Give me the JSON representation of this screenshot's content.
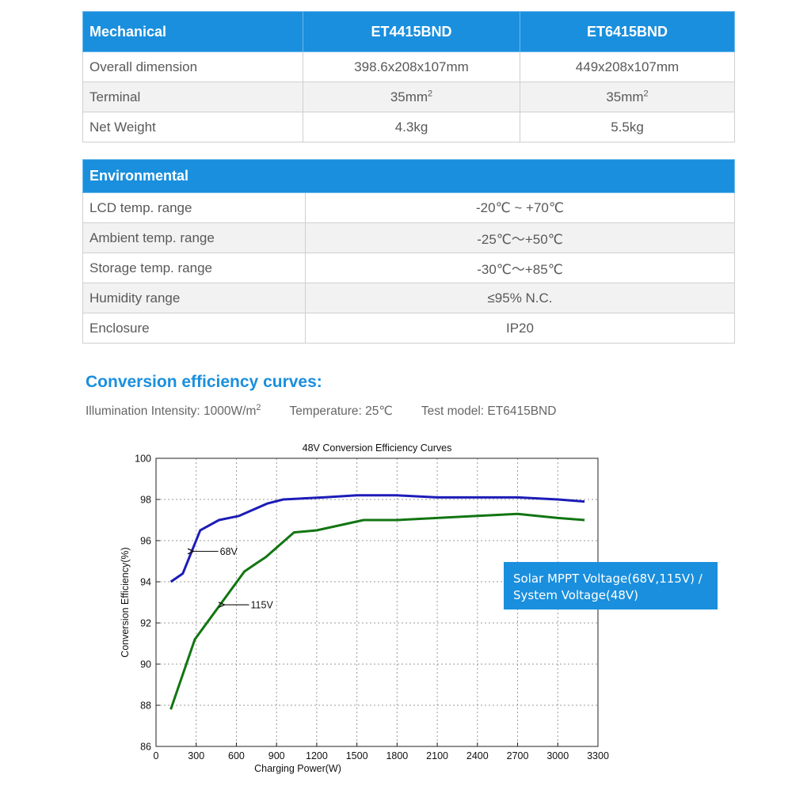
{
  "mechanical": {
    "header": [
      "Mechanical",
      "ET4415BND",
      "ET6415BND"
    ],
    "rows": [
      {
        "label": "Overall dimension",
        "a": "398.6x208x107mm",
        "b": "449x208x107mm"
      },
      {
        "label": "Terminal",
        "a": "35mm",
        "a_sup": "2",
        "b": "35mm",
        "b_sup": "2"
      },
      {
        "label": "Net Weight",
        "a": "4.3kg",
        "b": "5.5kg"
      }
    ]
  },
  "environmental": {
    "header": "Environmental",
    "rows": [
      {
        "label": "LCD temp. range",
        "value": "-20℃ ~ +70℃"
      },
      {
        "label": "Ambient temp. range",
        "value": "-25℃～+50℃"
      },
      {
        "label": "Storage temp. range",
        "value": "-30℃～+85℃"
      },
      {
        "label": "Humidity range",
        "value": "≤95% N.C."
      },
      {
        "label": "Enclosure",
        "value": "IP20"
      }
    ]
  },
  "curves": {
    "title": "Conversion efficiency curves:",
    "illumination": "Illumination Intensity: 1000W/m",
    "illumination_sup": "2",
    "temperature": "Temperature: 25℃",
    "test_model": "Test model: ET6415BND"
  },
  "legend_box": {
    "line1": "Solar MPPT Voltage(68V,115V) /",
    "line2": "System Voltage(48V)",
    "color": "#1a8fdd"
  },
  "chart_data": {
    "type": "line",
    "title": "48V Conversion Efficiency Curves",
    "xlabel": "Charging Power(W)",
    "ylabel": "Conversion Efficiency(%)",
    "xlim": [
      0,
      3300
    ],
    "ylim": [
      86,
      100
    ],
    "xticks": [
      0,
      300,
      600,
      900,
      1200,
      1500,
      1800,
      2100,
      2400,
      2700,
      3000,
      3300
    ],
    "yticks": [
      86,
      88,
      90,
      92,
      94,
      96,
      98,
      100
    ],
    "grid": true,
    "series": [
      {
        "name": "68V",
        "color": "#1c1cb8",
        "x": [
          110,
          200,
          330,
          470,
          620,
          830,
          950,
          1250,
          1500,
          1800,
          2100,
          2400,
          2700,
          3000,
          3200
        ],
        "y": [
          94.0,
          94.4,
          96.5,
          97.0,
          97.2,
          97.8,
          98.0,
          98.1,
          98.2,
          98.2,
          98.1,
          98.1,
          98.1,
          98.0,
          97.9
        ]
      },
      {
        "name": "115V",
        "color": "#127512",
        "x": [
          110,
          290,
          660,
          750,
          820,
          1030,
          1200,
          1550,
          1800,
          2100,
          2400,
          2700,
          3000,
          3200
        ],
        "y": [
          87.8,
          91.2,
          94.5,
          94.9,
          95.2,
          96.4,
          96.5,
          97.0,
          97.0,
          97.1,
          97.2,
          97.3,
          97.1,
          97.0
        ]
      }
    ],
    "annotations": [
      {
        "text": "68V",
        "at_x": 270,
        "at_y": 95.5
      },
      {
        "text": "115V",
        "at_x": 500,
        "at_y": 92.9
      }
    ]
  }
}
